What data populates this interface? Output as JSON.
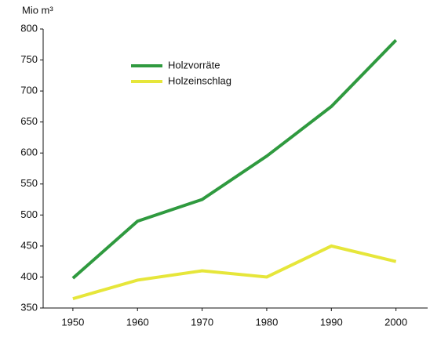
{
  "chart_data": {
    "type": "line",
    "y_label": "Mio m³",
    "x": [
      1950,
      1960,
      1970,
      1980,
      1990,
      2000
    ],
    "series": [
      {
        "name": "Holzvorräte",
        "color": "#2f9a3f",
        "values": [
          398,
          490,
          525,
          595,
          675,
          782
        ]
      },
      {
        "name": "Holzeinschlag",
        "color": "#e6e63a",
        "values": [
          365,
          395,
          410,
          400,
          450,
          425
        ]
      }
    ],
    "xlim": [
      1945.4,
      2004.9
    ],
    "xticks": [
      1950,
      1960,
      1970,
      1980,
      1990,
      2000
    ],
    "ylim": [
      350,
      800
    ],
    "yticks": [
      350,
      400,
      450,
      500,
      550,
      600,
      650,
      700,
      750,
      800
    ],
    "grid": false,
    "legend": "upper left"
  }
}
